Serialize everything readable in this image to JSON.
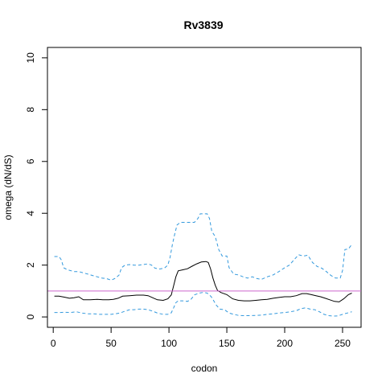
{
  "chart_data": {
    "type": "line",
    "title": "Rv3839",
    "xlabel": "codon",
    "ylabel": "omega (dN/dS)",
    "xlim": [
      -5,
      266
    ],
    "ylim": [
      -0.4,
      10.4
    ],
    "x_ticks": [
      0,
      50,
      100,
      150,
      200,
      250
    ],
    "y_ticks": [
      0,
      2,
      4,
      6,
      8,
      10
    ],
    "grid": false,
    "reference_line": {
      "y": 1,
      "color": "#cc66cc"
    },
    "series": [
      {
        "style": "solid",
        "color": "#000000",
        "points": [
          [
            1,
            0.8
          ],
          [
            5,
            0.8
          ],
          [
            10,
            0.76
          ],
          [
            14,
            0.72
          ],
          [
            18,
            0.74
          ],
          [
            22,
            0.78
          ],
          [
            26,
            0.66
          ],
          [
            32,
            0.66
          ],
          [
            38,
            0.68
          ],
          [
            43,
            0.66
          ],
          [
            48,
            0.66
          ],
          [
            52,
            0.68
          ],
          [
            56,
            0.72
          ],
          [
            60,
            0.8
          ],
          [
            66,
            0.82
          ],
          [
            72,
            0.84
          ],
          [
            78,
            0.84
          ],
          [
            82,
            0.82
          ],
          [
            86,
            0.74
          ],
          [
            90,
            0.66
          ],
          [
            95,
            0.64
          ],
          [
            99,
            0.7
          ],
          [
            102,
            0.85
          ],
          [
            104,
            1.2
          ],
          [
            106,
            1.55
          ],
          [
            108,
            1.78
          ],
          [
            112,
            1.82
          ],
          [
            116,
            1.86
          ],
          [
            120,
            1.96
          ],
          [
            124,
            2.05
          ],
          [
            128,
            2.12
          ],
          [
            132,
            2.14
          ],
          [
            134,
            2.1
          ],
          [
            136,
            1.85
          ],
          [
            138,
            1.5
          ],
          [
            140,
            1.22
          ],
          [
            142,
            1.02
          ],
          [
            145,
            0.94
          ],
          [
            150,
            0.86
          ],
          [
            155,
            0.7
          ],
          [
            160,
            0.64
          ],
          [
            165,
            0.62
          ],
          [
            170,
            0.62
          ],
          [
            175,
            0.64
          ],
          [
            180,
            0.66
          ],
          [
            185,
            0.68
          ],
          [
            190,
            0.72
          ],
          [
            195,
            0.75
          ],
          [
            200,
            0.78
          ],
          [
            205,
            0.78
          ],
          [
            210,
            0.82
          ],
          [
            215,
            0.9
          ],
          [
            219,
            0.9
          ],
          [
            223,
            0.86
          ],
          [
            227,
            0.82
          ],
          [
            231,
            0.78
          ],
          [
            235,
            0.72
          ],
          [
            239,
            0.66
          ],
          [
            243,
            0.6
          ],
          [
            247,
            0.58
          ],
          [
            251,
            0.7
          ],
          [
            255,
            0.86
          ],
          [
            258,
            0.92
          ]
        ]
      },
      {
        "style": "dashed",
        "color": "#3399dd",
        "points": [
          [
            1,
            2.33
          ],
          [
            5,
            2.33
          ],
          [
            7,
            2.2
          ],
          [
            9,
            1.9
          ],
          [
            11,
            1.85
          ],
          [
            14,
            1.8
          ],
          [
            18,
            1.75
          ],
          [
            22,
            1.75
          ],
          [
            26,
            1.7
          ],
          [
            30,
            1.65
          ],
          [
            34,
            1.6
          ],
          [
            38,
            1.55
          ],
          [
            42,
            1.5
          ],
          [
            46,
            1.48
          ],
          [
            50,
            1.42
          ],
          [
            54,
            1.5
          ],
          [
            57,
            1.62
          ],
          [
            59,
            1.9
          ],
          [
            62,
            2.0
          ],
          [
            66,
            2.02
          ],
          [
            70,
            2.0
          ],
          [
            74,
            2.0
          ],
          [
            78,
            2.02
          ],
          [
            82,
            2.05
          ],
          [
            85,
            2.0
          ],
          [
            88,
            1.88
          ],
          [
            92,
            1.85
          ],
          [
            96,
            1.88
          ],
          [
            99,
            2.0
          ],
          [
            101,
            2.3
          ],
          [
            103,
            2.8
          ],
          [
            105,
            3.2
          ],
          [
            107,
            3.55
          ],
          [
            110,
            3.65
          ],
          [
            114,
            3.65
          ],
          [
            118,
            3.65
          ],
          [
            122,
            3.65
          ],
          [
            125,
            3.8
          ],
          [
            127,
            3.98
          ],
          [
            133,
            3.98
          ],
          [
            135,
            3.8
          ],
          [
            137,
            3.3
          ],
          [
            140,
            3.1
          ],
          [
            143,
            2.6
          ],
          [
            146,
            2.35
          ],
          [
            150,
            2.35
          ],
          [
            152,
            1.9
          ],
          [
            156,
            1.65
          ],
          [
            160,
            1.62
          ],
          [
            164,
            1.55
          ],
          [
            168,
            1.5
          ],
          [
            172,
            1.55
          ],
          [
            176,
            1.48
          ],
          [
            180,
            1.45
          ],
          [
            185,
            1.55
          ],
          [
            190,
            1.62
          ],
          [
            195,
            1.75
          ],
          [
            200,
            1.9
          ],
          [
            204,
            2.0
          ],
          [
            208,
            2.2
          ],
          [
            212,
            2.4
          ],
          [
            216,
            2.35
          ],
          [
            220,
            2.38
          ],
          [
            224,
            2.1
          ],
          [
            228,
            1.95
          ],
          [
            232,
            1.88
          ],
          [
            236,
            1.75
          ],
          [
            240,
            1.6
          ],
          [
            244,
            1.5
          ],
          [
            248,
            1.5
          ],
          [
            250,
            1.8
          ],
          [
            252,
            2.6
          ],
          [
            255,
            2.62
          ],
          [
            258,
            2.8
          ]
        ]
      },
      {
        "style": "dashed",
        "color": "#3399dd",
        "points": [
          [
            1,
            0.17
          ],
          [
            6,
            0.17
          ],
          [
            10,
            0.18
          ],
          [
            15,
            0.17
          ],
          [
            20,
            0.2
          ],
          [
            25,
            0.15
          ],
          [
            30,
            0.12
          ],
          [
            35,
            0.12
          ],
          [
            40,
            0.1
          ],
          [
            45,
            0.1
          ],
          [
            50,
            0.1
          ],
          [
            54,
            0.12
          ],
          [
            58,
            0.16
          ],
          [
            62,
            0.22
          ],
          [
            66,
            0.28
          ],
          [
            70,
            0.28
          ],
          [
            74,
            0.3
          ],
          [
            78,
            0.3
          ],
          [
            82,
            0.28
          ],
          [
            86,
            0.22
          ],
          [
            90,
            0.15
          ],
          [
            95,
            0.1
          ],
          [
            99,
            0.1
          ],
          [
            102,
            0.16
          ],
          [
            104,
            0.35
          ],
          [
            106,
            0.55
          ],
          [
            108,
            0.62
          ],
          [
            112,
            0.62
          ],
          [
            116,
            0.6
          ],
          [
            119,
            0.68
          ],
          [
            122,
            0.85
          ],
          [
            126,
            0.92
          ],
          [
            130,
            0.95
          ],
          [
            133,
            0.92
          ],
          [
            135,
            0.85
          ],
          [
            137,
            0.75
          ],
          [
            139,
            0.6
          ],
          [
            141,
            0.45
          ],
          [
            144,
            0.3
          ],
          [
            148,
            0.28
          ],
          [
            152,
            0.15
          ],
          [
            156,
            0.1
          ],
          [
            160,
            0.06
          ],
          [
            165,
            0.05
          ],
          [
            170,
            0.05
          ],
          [
            175,
            0.06
          ],
          [
            180,
            0.07
          ],
          [
            185,
            0.1
          ],
          [
            190,
            0.12
          ],
          [
            195,
            0.15
          ],
          [
            200,
            0.17
          ],
          [
            205,
            0.2
          ],
          [
            210,
            0.24
          ],
          [
            214,
            0.32
          ],
          [
            218,
            0.35
          ],
          [
            222,
            0.3
          ],
          [
            226,
            0.28
          ],
          [
            230,
            0.2
          ],
          [
            234,
            0.1
          ],
          [
            238,
            0.05
          ],
          [
            242,
            0.03
          ],
          [
            246,
            0.04
          ],
          [
            250,
            0.1
          ],
          [
            254,
            0.15
          ],
          [
            258,
            0.2
          ]
        ]
      }
    ]
  }
}
